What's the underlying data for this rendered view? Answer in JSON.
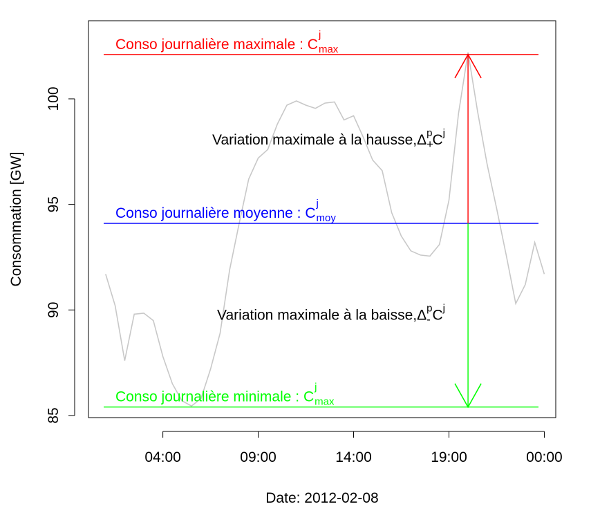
{
  "chart_data": {
    "type": "line",
    "title": "",
    "xlabel": "Date: 2012-02-08",
    "ylabel": "Consommation [GW]",
    "x_ticks": [
      {
        "hour": 4,
        "label": "04:00"
      },
      {
        "hour": 9,
        "label": "09:00"
      },
      {
        "hour": 14,
        "label": "14:00"
      },
      {
        "hour": 19,
        "label": "19:00"
      },
      {
        "hour": 24,
        "label": "00:00"
      }
    ],
    "y_ticks": [
      85,
      90,
      95,
      100
    ],
    "xlim": [
      0.1,
      24.6
    ],
    "ylim": [
      84.9,
      103.7
    ],
    "grid": false,
    "series": [
      {
        "color": "#c8c8c8",
        "points": [
          [
            1.0,
            91.7
          ],
          [
            1.5,
            90.2
          ],
          [
            2.0,
            87.6
          ],
          [
            2.5,
            89.8
          ],
          [
            3.0,
            89.85
          ],
          [
            3.5,
            89.5
          ],
          [
            4.0,
            87.8
          ],
          [
            4.5,
            86.5
          ],
          [
            5.0,
            85.7
          ],
          [
            5.5,
            85.45
          ],
          [
            6.0,
            85.8
          ],
          [
            6.5,
            87.2
          ],
          [
            7.0,
            88.9
          ],
          [
            7.5,
            91.9
          ],
          [
            8.0,
            94.1
          ],
          [
            8.5,
            96.2
          ],
          [
            9.0,
            97.2
          ],
          [
            9.5,
            97.6
          ],
          [
            10.0,
            98.8
          ],
          [
            10.5,
            99.7
          ],
          [
            11.0,
            99.9
          ],
          [
            11.5,
            99.7
          ],
          [
            12.0,
            99.55
          ],
          [
            12.5,
            99.8
          ],
          [
            13.0,
            99.85
          ],
          [
            13.5,
            99.0
          ],
          [
            14.0,
            99.2
          ],
          [
            14.5,
            98.2
          ],
          [
            15.0,
            97.1
          ],
          [
            15.5,
            96.6
          ],
          [
            16.0,
            94.6
          ],
          [
            16.5,
            93.5
          ],
          [
            17.0,
            92.8
          ],
          [
            17.5,
            92.6
          ],
          [
            18.0,
            92.55
          ],
          [
            18.5,
            93.1
          ],
          [
            19.0,
            95.2
          ],
          [
            19.5,
            99.3
          ],
          [
            20.0,
            102.2
          ],
          [
            20.5,
            99.4
          ],
          [
            21.0,
            96.9
          ],
          [
            21.5,
            94.8
          ],
          [
            22.0,
            92.6
          ],
          [
            22.5,
            90.3
          ],
          [
            23.0,
            91.2
          ],
          [
            23.5,
            93.2
          ],
          [
            24.0,
            91.7
          ]
        ]
      }
    ],
    "hlines": [
      {
        "name": "max",
        "y": 102.1,
        "color": "#ff0000",
        "text": "Conso journalière maximale : C",
        "sup": "j",
        "sub": "max"
      },
      {
        "name": "moy",
        "y": 94.1,
        "color": "#0000ff",
        "text": "Conso journalière moyenne : C",
        "sup": "j",
        "sub": "moy"
      },
      {
        "name": "min",
        "y": 85.4,
        "color": "#00ff00",
        "text": "Conso journalière minimale : C",
        "sup": "j",
        "sub": "max"
      }
    ],
    "arrows": [
      {
        "name": "up",
        "x_hour": 20.0,
        "from": 94.1,
        "to": 102.1,
        "color": "#ff0000"
      },
      {
        "name": "down",
        "x_hour": 20.0,
        "from": 94.1,
        "to": 85.4,
        "color": "#00ff00"
      }
    ],
    "annotations": [
      {
        "name": "hausse",
        "text": "Variation maximale à la hausse,Δ",
        "sup": "p",
        "sub": "+",
        "tail": "C",
        "tail_sup": "j",
        "y": 98.1
      },
      {
        "name": "baisse",
        "text": "Variation maximale à la baisse,Δ",
        "sup": "p",
        "sub": "-",
        "tail": "C",
        "tail_sup": "j",
        "y": 89.8
      }
    ]
  }
}
